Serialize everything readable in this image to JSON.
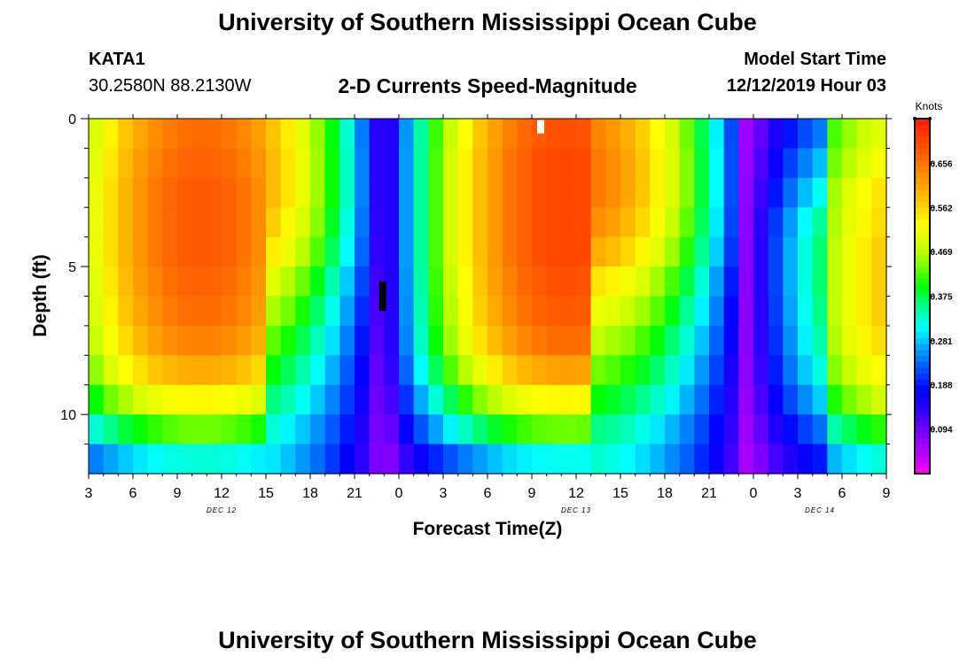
{
  "page": {
    "title_top": "University of Southern Mississippi Ocean Cube",
    "title_bottom": "University of Southern Mississippi Ocean Cube",
    "station_id": "KATA1",
    "station_coords": "30.2580N 88.2130W",
    "model_start_label": "Model Start Time",
    "model_start_value": "12/12/2019 Hour 03"
  },
  "colors": {
    "ramp": [
      "#ff00ff",
      "#b400ff",
      "#7a00ff",
      "#3000ff",
      "#0000ff",
      "#0050ff",
      "#00a0ff",
      "#00ffff",
      "#00ff90",
      "#00ff00",
      "#80ff00",
      "#d4ff00",
      "#ffff00",
      "#ffc800",
      "#ff9c00",
      "#ff6e00",
      "#ff4400",
      "#ff1e00"
    ]
  },
  "chart_data": {
    "type": "heatmap",
    "title": "2-D Currents Speed-Magnitude",
    "xlabel": "Forecast Time(Z)",
    "ylabel": "Depth (ft)",
    "colorbar_label": "Knots",
    "colorbar_ticks": [
      "0.656",
      "0.562",
      "0.469",
      "0.375",
      "0.281",
      "0.188",
      "0.094"
    ],
    "colorbar_tick_values": [
      0.656,
      0.562,
      0.469,
      0.375,
      0.281,
      0.188,
      0.094
    ],
    "value_range": [
      0,
      0.75
    ],
    "x_range_hours": [
      0,
      54
    ],
    "x_ticks": [
      "3",
      "6",
      "9",
      "12",
      "15",
      "18",
      "21",
      "0",
      "3",
      "6",
      "9",
      "12",
      "15",
      "18",
      "21",
      "0",
      "3",
      "6",
      "9"
    ],
    "x_tick_hours": [
      0,
      3,
      6,
      9,
      12,
      15,
      18,
      21,
      24,
      27,
      30,
      33,
      36,
      39,
      42,
      45,
      48,
      51,
      54
    ],
    "date_labels": [
      {
        "text": "DEC 12",
        "hour": 9
      },
      {
        "text": "DEC 13",
        "hour": 33
      },
      {
        "text": "DEC 14",
        "hour": 49.5
      }
    ],
    "y_ticks": [
      "0",
      "5",
      "10"
    ],
    "y_tick_values": [
      0,
      5,
      10
    ],
    "y_range_ft": [
      0,
      12
    ],
    "depths_ft": [
      0.5,
      1.5,
      2.5,
      3.5,
      4.5,
      5.5,
      6.5,
      7.5,
      8.5,
      9.5,
      10.5,
      11.5
    ],
    "hour_step": 1,
    "depth_profiles": [
      [
        0.63,
        0.64,
        0.65,
        0.65,
        0.65,
        0.64,
        0.63,
        0.61,
        0.57,
        0.5,
        0.4,
        0.29
      ],
      [
        0.66,
        0.67,
        0.67,
        0.67,
        0.67,
        0.66,
        0.65,
        0.63,
        0.58,
        0.5,
        0.4,
        0.28
      ],
      [
        0.62,
        0.63,
        0.63,
        0.61,
        0.58,
        0.53,
        0.49,
        0.45,
        0.41,
        0.37,
        0.33,
        0.3
      ],
      [
        0.3,
        0.35,
        0.4,
        0.45,
        0.47,
        0.47,
        0.46,
        0.44,
        0.41,
        0.36,
        0.29,
        0.22
      ],
      [
        0.5,
        0.52,
        0.55,
        0.56,
        0.57,
        0.57,
        0.57,
        0.56,
        0.53,
        0.48,
        0.4,
        0.31
      ]
    ],
    "markers": [
      {
        "hour": 19.9,
        "depth_top_ft": 5.5,
        "depth_bottom_ft": 6.5,
        "color": "#000000"
      },
      {
        "hour": 30.6,
        "depth_top_ft": 0.05,
        "depth_bottom_ft": 0.5,
        "color": "#ffffff"
      }
    ]
  }
}
